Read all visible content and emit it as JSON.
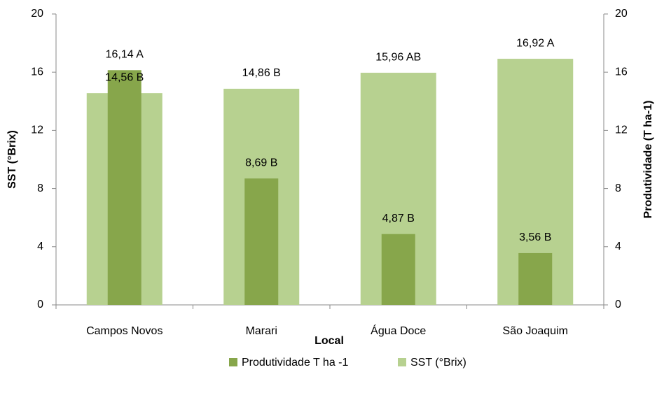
{
  "chart_data": {
    "type": "bar",
    "xlabel": "Local",
    "ylabel": "SST (°Brix)",
    "y2label": "Produtividade (T ha-1)",
    "categories": [
      "Campos Novos",
      "Marari",
      "Água Doce",
      "São Joaquim"
    ],
    "series": [
      {
        "name": "Produtividade T ha -1",
        "color": "#87a64b",
        "axis": "y2",
        "values": [
          16.14,
          8.69,
          4.87,
          3.56
        ],
        "value_labels": [
          "16,14 A",
          "8,69 B",
          "4,87 B",
          "3,56 B"
        ]
      },
      {
        "name": "SST (°Brix)",
        "color": "#b7d190",
        "values": [
          14.56,
          14.86,
          15.96,
          16.92
        ],
        "value_labels": [
          "14,56 B",
          "14,86 B",
          "15,96 AB",
          "16,92 A"
        ]
      }
    ],
    "ylim": [
      0,
      20
    ],
    "yticks": [
      0,
      4,
      8,
      12,
      16,
      20
    ],
    "y2lim": [
      0,
      20
    ],
    "y2ticks": [
      0,
      4,
      8,
      12,
      16,
      20
    ],
    "legend": "bottom"
  }
}
